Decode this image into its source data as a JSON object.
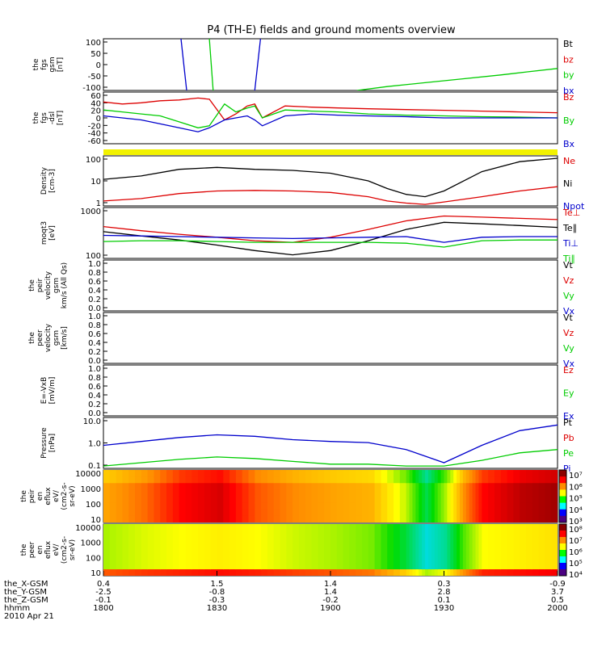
{
  "title": "P4 (TH-E) fields and ground moments overview",
  "time_axis": {
    "ticks": [
      "1800",
      "1830",
      "1900",
      "1930",
      "2000"
    ],
    "rows": [
      {
        "label": "the_X-GSM",
        "values": [
          "0.4",
          "1.5",
          "1.4",
          "0.3",
          "-0.9"
        ]
      },
      {
        "label": "the_Y-GSM",
        "values": [
          "-2.5",
          "-0.8",
          "1.4",
          "2.8",
          "3.7"
        ]
      },
      {
        "label": "the_Z-GSM",
        "values": [
          "-0.1",
          "-0.3",
          "-0.2",
          "0.1",
          "0.5"
        ]
      },
      {
        "label": "hhmm",
        "values": []
      }
    ],
    "date": "2010 Apr 21"
  },
  "panels": [
    {
      "id": "fgs-gsm",
      "ylabel": [
        "the",
        "fgs",
        "gsm",
        "[nT]"
      ],
      "yticks": [
        "100",
        "50",
        "0",
        "-50",
        "-100"
      ],
      "legend": [
        {
          "text": "Bt",
          "color": "#000000"
        },
        {
          "text": "bz",
          "color": "#dd0000"
        },
        {
          "text": "by",
          "color": "#00cc00"
        },
        {
          "text": "bx",
          "color": "#0000cc"
        }
      ]
    },
    {
      "id": "fgs-dsl",
      "ylabel": [
        "the",
        "fgs",
        "-dsl",
        "[nT]"
      ],
      "yticks": [
        "60",
        "40",
        "20",
        "0",
        "-20",
        "-40",
        "-60"
      ],
      "legend": [
        {
          "text": "Bz",
          "color": "#dd0000"
        },
        {
          "text": "By",
          "color": "#00cc00"
        },
        {
          "text": "Bx",
          "color": "#0000cc"
        }
      ]
    },
    {
      "id": "density",
      "ylabel": [
        "Density",
        "[cm-3]"
      ],
      "yticks": [
        "100",
        "10",
        "1"
      ],
      "legend": [
        {
          "text": "Ne",
          "color": "#dd0000"
        },
        {
          "text": "Ni",
          "color": "#000000"
        },
        {
          "text": "Npot",
          "color": "#0000cc"
        }
      ]
    },
    {
      "id": "temperature",
      "ylabel": [
        "moqt3",
        "[eV]"
      ],
      "yticks": [
        "1000",
        "100"
      ],
      "legend": [
        {
          "text": "Te⊥",
          "color": "#dd0000"
        },
        {
          "text": "Te∥",
          "color": "#000000"
        },
        {
          "text": "Ti⊥",
          "color": "#0000cc"
        },
        {
          "text": "Ti∥",
          "color": "#00cc00"
        }
      ]
    },
    {
      "id": "peir-velocity",
      "ylabel": [
        "the",
        "peir",
        "velocity",
        "gsm",
        "km/s (All Qs)"
      ],
      "yticks": [
        "1.0",
        "0.8",
        "0.6",
        "0.4",
        "0.2",
        "0.0"
      ],
      "legend": [
        {
          "text": "Vt",
          "color": "#000000"
        },
        {
          "text": "Vz",
          "color": "#dd0000"
        },
        {
          "text": "Vy",
          "color": "#00cc00"
        },
        {
          "text": "Vx",
          "color": "#0000cc"
        }
      ]
    },
    {
      "id": "peer-velocity",
      "ylabel": [
        "the",
        "peer",
        "velocity",
        "gsm",
        "[km/s]"
      ],
      "yticks": [
        "1.0",
        "0.8",
        "0.6",
        "0.4",
        "0.2",
        "0.0"
      ],
      "legend": [
        {
          "text": "Vt",
          "color": "#000000"
        },
        {
          "text": "Vz",
          "color": "#dd0000"
        },
        {
          "text": "Vy",
          "color": "#00cc00"
        },
        {
          "text": "Vx",
          "color": "#0000cc"
        }
      ]
    },
    {
      "id": "efield",
      "ylabel": [
        "E=-VxB",
        "[mV/m]"
      ],
      "yticks": [
        "1.0",
        "0.8",
        "0.6",
        "0.4",
        "0.2",
        "0.0"
      ],
      "legend": [
        {
          "text": "Ez",
          "color": "#dd0000"
        },
        {
          "text": "Ey",
          "color": "#00cc00"
        },
        {
          "text": "Ex",
          "color": "#0000cc"
        }
      ]
    },
    {
      "id": "pressure",
      "ylabel": [
        "Pressure",
        "[nPa]"
      ],
      "yticks": [
        "10.0",
        "1.0",
        "0.1"
      ],
      "legend": [
        {
          "text": "Pt",
          "color": "#000000"
        },
        {
          "text": "Pb",
          "color": "#dd0000"
        },
        {
          "text": "Pe",
          "color": "#00cc00"
        },
        {
          "text": "Pi",
          "color": "#0000cc"
        }
      ]
    },
    {
      "id": "peir-spectrogram",
      "ylabel": [
        "the",
        "peir",
        "en",
        "eflux",
        "eV/",
        "(cm2-s-",
        "sr-eV)"
      ],
      "yticks": [
        "10000",
        "1000",
        "100",
        "10"
      ],
      "colorbar": [
        "10⁷",
        "10⁶",
        "10⁵",
        "10⁴",
        "10³"
      ]
    },
    {
      "id": "peer-spectrogram",
      "ylabel": [
        "the",
        "peer",
        "en",
        "eflux",
        "eV/",
        "(cm2-s-",
        "sr-eV)"
      ],
      "yticks": [
        "10000",
        "1000",
        "100",
        "10"
      ],
      "colorbar": [
        "10⁸",
        "10⁷",
        "10⁶",
        "10⁵",
        "10⁴"
      ]
    }
  ],
  "chart_data": [
    {
      "type": "line",
      "panel": "fgs-gsm",
      "ylim": [
        -100,
        100
      ],
      "xlim": [
        0,
        120
      ],
      "series": [
        {
          "name": "bx",
          "color": "#0000cc",
          "x": [
            20.5,
            22.0
          ],
          "y": [
            100,
            -100
          ]
        },
        {
          "name": "bx",
          "color": "#0000cc",
          "x": [
            40.0,
            41.5
          ],
          "y": [
            -100,
            100
          ]
        },
        {
          "name": "by",
          "color": "#00cc00",
          "x": [
            28.0,
            29.0
          ],
          "y": [
            100,
            -100
          ]
        },
        {
          "name": "by",
          "color": "#00cc00",
          "x": [
            67,
            75,
            85,
            95,
            105,
            112,
            120
          ],
          "y": [
            -100,
            -85,
            -70,
            -55,
            -40,
            -28,
            -15
          ]
        }
      ]
    },
    {
      "type": "line",
      "panel": "fgs-dsl",
      "ylim": [
        -70,
        60
      ],
      "xlim": [
        0,
        120
      ],
      "series": [
        {
          "name": "Bz",
          "color": "#dd0000",
          "x": [
            0,
            5,
            10,
            15,
            20,
            25,
            28,
            32,
            35,
            38,
            40,
            42,
            48,
            55,
            62,
            70,
            80,
            90,
            100,
            110,
            120
          ],
          "y": [
            35,
            30,
            33,
            38,
            40,
            45,
            42,
            -10,
            5,
            25,
            30,
            -5,
            25,
            22,
            20,
            18,
            16,
            14,
            12,
            10,
            8
          ]
        },
        {
          "name": "By",
          "color": "#00cc00",
          "x": [
            0,
            5,
            10,
            15,
            20,
            25,
            28,
            32,
            35,
            38,
            40,
            42,
            48,
            55,
            62,
            70,
            80,
            90,
            100,
            110,
            120
          ],
          "y": [
            15,
            10,
            5,
            0,
            -15,
            -30,
            -25,
            30,
            10,
            20,
            25,
            -5,
            15,
            12,
            10,
            5,
            2,
            0,
            -2,
            -3,
            -5
          ]
        },
        {
          "name": "Bx",
          "color": "#0000cc",
          "x": [
            0,
            5,
            10,
            15,
            20,
            25,
            28,
            32,
            35,
            38,
            40,
            42,
            48,
            55,
            62,
            70,
            80,
            90,
            100,
            110,
            120
          ],
          "y": [
            0,
            -5,
            -10,
            -20,
            -30,
            -40,
            -30,
            -10,
            -5,
            0,
            -10,
            -25,
            0,
            5,
            2,
            0,
            -2,
            -5,
            -5,
            -5,
            -5
          ]
        }
      ]
    },
    {
      "type": "line",
      "panel": "density",
      "ylog": true,
      "ylim": [
        0.5,
        200
      ],
      "xlim": [
        0,
        120
      ],
      "series": [
        {
          "name": "Ni",
          "color": "#000000",
          "x": [
            0,
            10,
            20,
            30,
            40,
            50,
            60,
            70,
            75,
            80,
            85,
            90,
            100,
            110,
            120
          ],
          "y": [
            12,
            18,
            40,
            50,
            40,
            35,
            25,
            10,
            4,
            2,
            1.5,
            3,
            30,
            100,
            150
          ]
        },
        {
          "name": "Ne",
          "color": "#dd0000",
          "x": [
            0,
            10,
            20,
            30,
            40,
            50,
            60,
            70,
            75,
            80,
            85,
            90,
            100,
            110,
            120
          ],
          "y": [
            0.9,
            1.2,
            2.2,
            3.0,
            3.2,
            3.0,
            2.5,
            1.5,
            0.9,
            0.7,
            0.6,
            0.8,
            1.5,
            3,
            5
          ]
        }
      ]
    },
    {
      "type": "line",
      "panel": "temperature",
      "ylog": true,
      "ylim": [
        100,
        1400
      ],
      "xlim": [
        0,
        120
      ],
      "series": [
        {
          "name": "Te⊥",
          "color": "#dd0000",
          "x": [
            0,
            10,
            20,
            30,
            40,
            50,
            60,
            70,
            80,
            90,
            100,
            110,
            120
          ],
          "y": [
            520,
            420,
            350,
            300,
            250,
            230,
            300,
            450,
            700,
            900,
            850,
            800,
            750
          ]
        },
        {
          "name": "Te∥",
          "color": "#000000",
          "x": [
            0,
            10,
            20,
            30,
            40,
            50,
            60,
            70,
            80,
            90,
            100,
            110,
            120
          ],
          "y": [
            400,
            320,
            260,
            200,
            150,
            120,
            150,
            250,
            450,
            650,
            600,
            550,
            500
          ]
        },
        {
          "name": "Ti⊥",
          "color": "#0000cc",
          "x": [
            0,
            10,
            20,
            30,
            40,
            50,
            60,
            70,
            80,
            90,
            100,
            110,
            120
          ],
          "y": [
            330,
            320,
            310,
            300,
            290,
            280,
            290,
            300,
            310,
            230,
            300,
            310,
            310
          ]
        },
        {
          "name": "Ti∥",
          "color": "#00cc00",
          "x": [
            0,
            10,
            20,
            30,
            40,
            50,
            60,
            70,
            80,
            90,
            100,
            110,
            120
          ],
          "y": [
            240,
            250,
            250,
            240,
            230,
            230,
            230,
            230,
            220,
            180,
            250,
            260,
            260
          ]
        }
      ]
    },
    {
      "type": "line",
      "panel": "pressure",
      "ylog": true,
      "ylim": [
        0.03,
        15
      ],
      "xlim": [
        0,
        120
      ],
      "series": [
        {
          "name": "Pi",
          "color": "#0000cc",
          "x": [
            0,
            10,
            20,
            30,
            40,
            50,
            60,
            70,
            80,
            90,
            100,
            110,
            120
          ],
          "y": [
            0.5,
            0.8,
            1.3,
            1.8,
            1.5,
            1.0,
            0.8,
            0.7,
            0.3,
            0.06,
            0.5,
            3,
            6
          ]
        },
        {
          "name": "Pe",
          "color": "#00cc00",
          "x": [
            0,
            10,
            20,
            30,
            40,
            50,
            60,
            70,
            80,
            90,
            100,
            110,
            120
          ],
          "y": [
            0.04,
            0.06,
            0.09,
            0.12,
            0.1,
            0.07,
            0.05,
            0.05,
            0.04,
            0.04,
            0.08,
            0.2,
            0.3
          ]
        }
      ]
    },
    {
      "type": "heatmap",
      "panel": "peir-spectrogram",
      "clim": [
        "10³",
        "10⁷"
      ],
      "x": [
        0,
        10,
        20,
        30,
        40,
        50,
        60,
        70,
        80,
        85,
        90,
        95,
        100,
        110,
        120
      ],
      "intensity": [
        0.72,
        0.78,
        0.88,
        0.92,
        0.8,
        0.75,
        0.72,
        0.7,
        0.55,
        0.4,
        0.55,
        0.75,
        0.88,
        0.95,
        0.98
      ]
    },
    {
      "type": "heatmap",
      "panel": "peer-spectrogram",
      "clim": [
        "10⁴",
        "10⁸"
      ],
      "x": [
        0,
        10,
        20,
        30,
        40,
        50,
        60,
        70,
        80,
        85,
        90,
        95,
        100,
        110,
        120
      ],
      "intensity": [
        0.55,
        0.58,
        0.6,
        0.62,
        0.6,
        0.57,
        0.55,
        0.52,
        0.4,
        0.3,
        0.35,
        0.5,
        0.6,
        0.62,
        0.64
      ]
    }
  ]
}
